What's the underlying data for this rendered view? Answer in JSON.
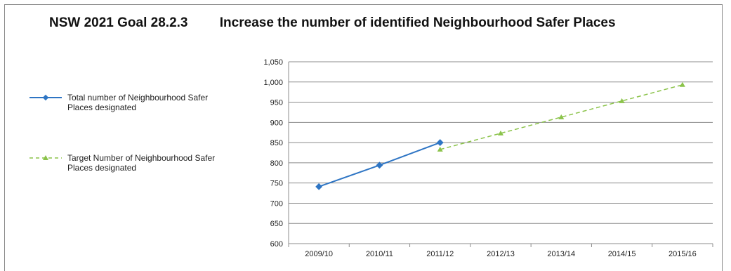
{
  "header": {
    "goal": "NSW 2021 Goal 28.2.3",
    "description": "Increase the number of identified Neighbourhood Safer Places"
  },
  "colors": {
    "actual": "#2e75c4",
    "target": "#8bc34a",
    "grid": "#8c8c8c",
    "frame": "#8a8a8a"
  },
  "chart_data": {
    "type": "line",
    "title": "Increase the number of identified Neighbourhood Safer Places",
    "categories": [
      "2009/10",
      "2010/11",
      "2011/12",
      "2012/13",
      "2013/14",
      "2014/15",
      "2015/16"
    ],
    "ylim": [
      600,
      1050
    ],
    "ytick_step": 50,
    "ytick_labels": [
      "600",
      "650",
      "700",
      "750",
      "800",
      "850",
      "900",
      "950",
      "1,000",
      "1,050"
    ],
    "grid": true,
    "legend_position": "left",
    "series": [
      {
        "name": "Total number of Neighbourhood Safer Places designated",
        "values": [
          741,
          794,
          850,
          null,
          null,
          null,
          null
        ],
        "style": "solid",
        "marker": "diamond",
        "color": "#2e75c4"
      },
      {
        "name": "Target Number of Neighbourhood Safer Places designated",
        "values": [
          null,
          null,
          833,
          873,
          913,
          953,
          993
        ],
        "style": "dashed",
        "marker": "triangle",
        "color": "#8bc34a"
      }
    ]
  },
  "legend": {
    "items": [
      {
        "label": "Total number of Neighbourhood Safer Places designated"
      },
      {
        "label": "Target Number of Neighbourhood Safer Places designated"
      }
    ]
  }
}
